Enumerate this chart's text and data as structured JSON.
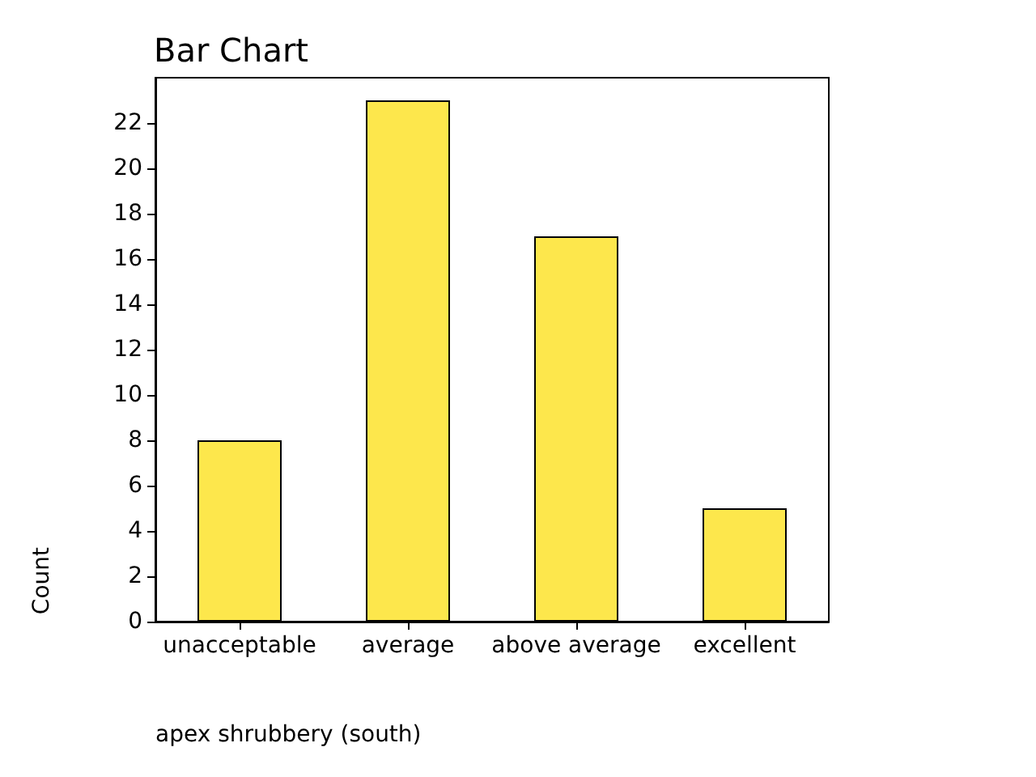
{
  "chart_data": {
    "type": "bar",
    "title": "Bar Chart",
    "xlabel": "apex shrubbery (south)",
    "ylabel": "Count",
    "categories": [
      "unacceptable",
      "average",
      "above average",
      "excellent"
    ],
    "values": [
      8,
      23,
      17,
      5
    ],
    "color": "#fde74c",
    "ylim": [
      0,
      24
    ],
    "yticks": [
      0,
      2,
      4,
      6,
      8,
      10,
      12,
      14,
      16,
      18,
      20,
      22
    ]
  }
}
